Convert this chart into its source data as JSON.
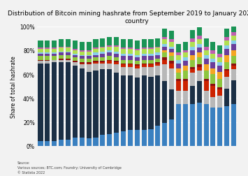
{
  "title": "Distribution of Bitcoin mining hashrate from September 2019 to January 2022, by\ncountry",
  "ylabel": "Share of total hashrate",
  "source": "Source:\nVarious sources; BTC.com; Foundry; University of Cambridge\n© Statista 2022",
  "n_bars": 29,
  "layers": [
    {
      "key": "usa",
      "color": "#3a80c0",
      "vals": [
        0.04,
        0.04,
        0.04,
        0.05,
        0.05,
        0.07,
        0.07,
        0.06,
        0.07,
        0.09,
        0.1,
        0.11,
        0.12,
        0.13,
        0.13,
        0.13,
        0.14,
        0.17,
        0.19,
        0.22,
        0.35,
        0.35,
        0.35,
        0.36,
        0.35,
        0.32,
        0.32,
        0.33,
        0.35
      ]
    },
    {
      "key": "china",
      "color": "#1b2f45",
      "vals": [
        0.65,
        0.65,
        0.66,
        0.65,
        0.65,
        0.6,
        0.58,
        0.56,
        0.56,
        0.55,
        0.54,
        0.5,
        0.47,
        0.46,
        0.44,
        0.46,
        0.44,
        0.42,
        0.35,
        0.25,
        0.0,
        0.0,
        0.15,
        0.18,
        0.0,
        0.0,
        0.0,
        0.15,
        0.2
      ]
    },
    {
      "key": "russia_grey",
      "color": "#b8b8b8",
      "vals": [
        0.02,
        0.02,
        0.02,
        0.02,
        0.02,
        0.03,
        0.03,
        0.06,
        0.06,
        0.05,
        0.05,
        0.07,
        0.07,
        0.07,
        0.08,
        0.07,
        0.08,
        0.08,
        0.14,
        0.18,
        0.11,
        0.11,
        0.11,
        0.09,
        0.11,
        0.09,
        0.1,
        0.1,
        0.09
      ]
    },
    {
      "key": "red_seg",
      "color": "#cc2200",
      "vals": [
        0.0,
        0.0,
        0.0,
        0.0,
        0.0,
        0.0,
        0.01,
        0.01,
        0.01,
        0.01,
        0.02,
        0.02,
        0.02,
        0.02,
        0.02,
        0.02,
        0.02,
        0.02,
        0.04,
        0.04,
        0.08,
        0.08,
        0.03,
        0.03,
        0.08,
        0.09,
        0.05,
        0.05,
        0.03
      ]
    },
    {
      "key": "dark_red",
      "color": "#8b1010",
      "vals": [
        0.01,
        0.01,
        0.0,
        0.01,
        0.01,
        0.01,
        0.01,
        0.01,
        0.01,
        0.01,
        0.01,
        0.01,
        0.01,
        0.01,
        0.01,
        0.01,
        0.01,
        0.01,
        0.02,
        0.02,
        0.02,
        0.02,
        0.02,
        0.02,
        0.02,
        0.02,
        0.02,
        0.01,
        0.02
      ]
    },
    {
      "key": "lime",
      "color": "#8dc63f",
      "vals": [
        0.03,
        0.03,
        0.03,
        0.03,
        0.03,
        0.03,
        0.03,
        0.03,
        0.03,
        0.03,
        0.03,
        0.03,
        0.03,
        0.03,
        0.03,
        0.03,
        0.03,
        0.03,
        0.04,
        0.04,
        0.05,
        0.07,
        0.06,
        0.06,
        0.07,
        0.08,
        0.07,
        0.06,
        0.06
      ]
    },
    {
      "key": "orange",
      "color": "#f5a623",
      "vals": [
        0.0,
        0.0,
        0.0,
        0.0,
        0.0,
        0.0,
        0.0,
        0.0,
        0.0,
        0.0,
        0.0,
        0.0,
        0.0,
        0.0,
        0.0,
        0.0,
        0.0,
        0.0,
        0.02,
        0.03,
        0.04,
        0.04,
        0.04,
        0.04,
        0.05,
        0.05,
        0.06,
        0.06,
        0.05
      ]
    },
    {
      "key": "purple",
      "color": "#6a3d9a",
      "vals": [
        0.02,
        0.02,
        0.02,
        0.02,
        0.02,
        0.02,
        0.02,
        0.02,
        0.02,
        0.03,
        0.03,
        0.03,
        0.03,
        0.03,
        0.03,
        0.03,
        0.03,
        0.03,
        0.03,
        0.03,
        0.04,
        0.04,
        0.04,
        0.04,
        0.05,
        0.05,
        0.05,
        0.05,
        0.05
      ]
    },
    {
      "key": "light_blue",
      "color": "#87ceeb",
      "vals": [
        0.01,
        0.01,
        0.01,
        0.01,
        0.01,
        0.01,
        0.01,
        0.01,
        0.02,
        0.02,
        0.02,
        0.02,
        0.02,
        0.02,
        0.02,
        0.02,
        0.02,
        0.02,
        0.02,
        0.02,
        0.03,
        0.03,
        0.03,
        0.03,
        0.03,
        0.03,
        0.03,
        0.03,
        0.03
      ]
    },
    {
      "key": "ygreen",
      "color": "#b0e050",
      "vals": [
        0.03,
        0.03,
        0.03,
        0.03,
        0.03,
        0.03,
        0.03,
        0.03,
        0.03,
        0.03,
        0.03,
        0.04,
        0.04,
        0.04,
        0.04,
        0.04,
        0.04,
        0.04,
        0.04,
        0.04,
        0.04,
        0.04,
        0.04,
        0.04,
        0.04,
        0.04,
        0.04,
        0.04,
        0.04
      ]
    },
    {
      "key": "magenta",
      "color": "#c060b0",
      "vals": [
        0.01,
        0.01,
        0.01,
        0.01,
        0.01,
        0.01,
        0.01,
        0.01,
        0.01,
        0.01,
        0.01,
        0.01,
        0.01,
        0.01,
        0.01,
        0.01,
        0.01,
        0.01,
        0.02,
        0.02,
        0.02,
        0.02,
        0.03,
        0.03,
        0.03,
        0.03,
        0.03,
        0.03,
        0.03
      ]
    },
    {
      "key": "green_top",
      "color": "#1a9455",
      "vals": [
        0.06,
        0.06,
        0.06,
        0.06,
        0.06,
        0.07,
        0.07,
        0.07,
        0.07,
        0.07,
        0.07,
        0.07,
        0.07,
        0.07,
        0.07,
        0.07,
        0.07,
        0.07,
        0.07,
        0.07,
        0.07,
        0.07,
        0.07,
        0.07,
        0.07,
        0.07,
        0.07,
        0.07,
        0.07
      ]
    }
  ]
}
